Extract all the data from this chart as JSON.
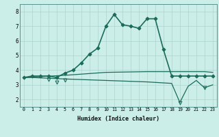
{
  "xlabel": "Humidex (Indice chaleur)",
  "bg_color": "#cceee8",
  "grid_color": "#aad4ce",
  "line_color": "#1a6b5a",
  "x_ticks": [
    0,
    1,
    2,
    3,
    4,
    5,
    6,
    7,
    8,
    9,
    10,
    11,
    12,
    13,
    14,
    15,
    16,
    17,
    18,
    19,
    20,
    21,
    22,
    23
  ],
  "y_ticks": [
    2,
    3,
    4,
    5,
    6,
    7,
    8
  ],
  "ylim": [
    1.5,
    8.5
  ],
  "xlim": [
    -0.5,
    23.5
  ],
  "series": [
    {
      "x": [
        0,
        1,
        2,
        3,
        4,
        5,
        6,
        7,
        8,
        9,
        10,
        11,
        12,
        13,
        14,
        15,
        16,
        17,
        18,
        19,
        20,
        21,
        22,
        23
      ],
      "y": [
        3.5,
        3.6,
        3.6,
        3.6,
        3.5,
        3.8,
        4.0,
        4.5,
        5.1,
        5.5,
        7.0,
        7.8,
        7.1,
        7.0,
        6.85,
        7.5,
        7.5,
        5.4,
        3.6,
        3.6,
        3.6,
        3.6,
        3.6,
        3.6
      ],
      "marker": "D",
      "markersize": 2.5,
      "linewidth": 1.2,
      "color": "#1a6b5a",
      "markerfacecolor": "#1a6b5a"
    },
    {
      "x": [
        0,
        5,
        10,
        15,
        18,
        19,
        22,
        23
      ],
      "y": [
        3.5,
        3.65,
        3.85,
        3.9,
        3.9,
        3.9,
        3.9,
        3.85
      ],
      "marker": null,
      "markersize": 0,
      "linewidth": 0.9,
      "color": "#1a6b5a",
      "markerfacecolor": "#1a6b5a"
    },
    {
      "x": [
        0,
        1,
        5,
        10,
        15,
        18,
        19,
        20,
        21,
        22,
        23
      ],
      "y": [
        3.5,
        3.5,
        3.4,
        3.3,
        3.2,
        3.1,
        1.8,
        2.9,
        3.3,
        2.8,
        3.0
      ],
      "marker": null,
      "markersize": 0,
      "linewidth": 0.9,
      "color": "#1a6b5a",
      "markerfacecolor": "#1a6b5a"
    },
    {
      "x": [
        3,
        4,
        5,
        19,
        22
      ],
      "y": [
        3.35,
        3.2,
        3.3,
        1.8,
        2.8
      ],
      "marker": "v",
      "markersize": 3.5,
      "linewidth": 0,
      "color": "#1a6b5a",
      "markerfacecolor": "none"
    }
  ]
}
